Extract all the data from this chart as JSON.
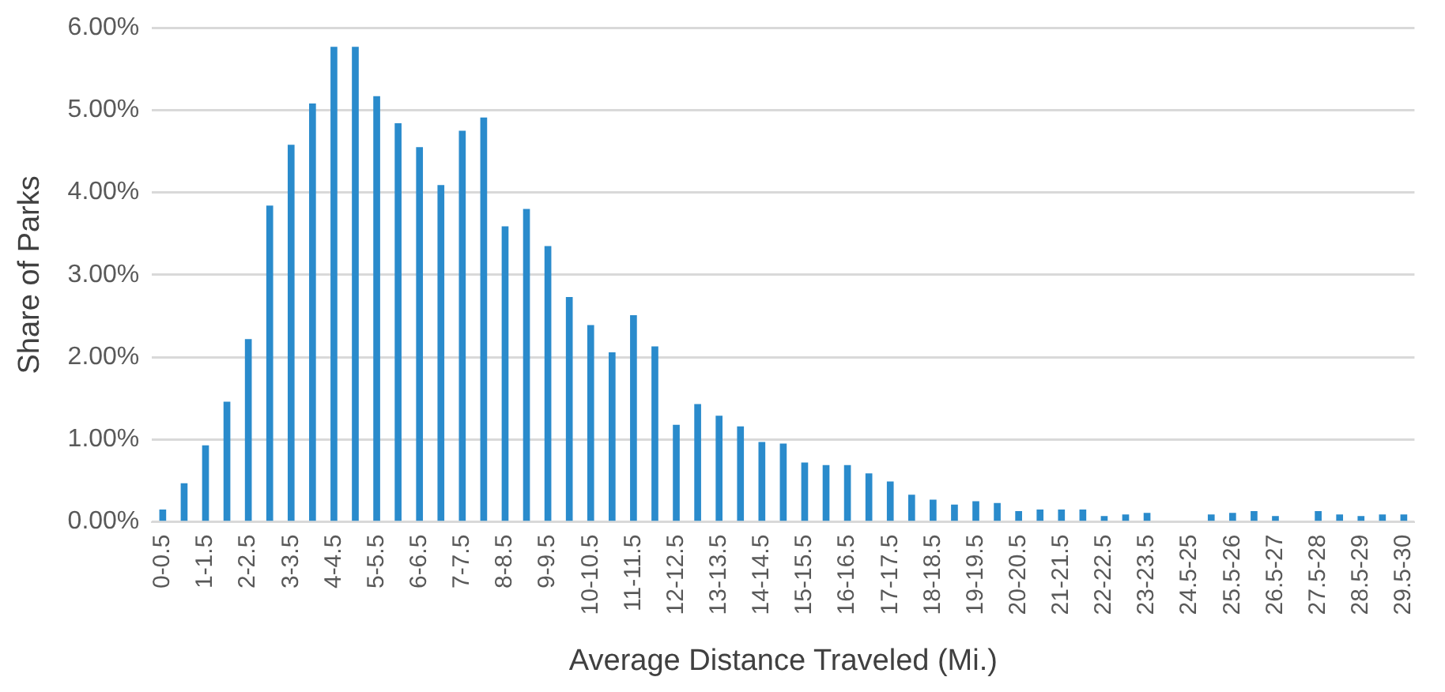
{
  "chart_data": {
    "type": "bar",
    "xlabel": "Average Distance Traveled (Mi.)",
    "ylabel": "Share of Parks",
    "categories": [
      "0-0.5",
      null,
      "1-1.5",
      null,
      "2-2.5",
      null,
      "3-3.5",
      null,
      "4-4.5",
      null,
      "5-5.5",
      null,
      "6-6.5",
      null,
      "7-7.5",
      null,
      "8-8.5",
      null,
      "9-9.5",
      null,
      "10-10.5",
      null,
      "11-11.5",
      null,
      "12-12.5",
      null,
      "13-13.5",
      null,
      "14-14.5",
      null,
      "15-15.5",
      null,
      "16-16.5",
      null,
      "17-17.5",
      null,
      "18-18.5",
      null,
      "19-19.5",
      null,
      "20-20.5",
      null,
      "21-21.5",
      null,
      "22-22.5",
      null,
      "23-23.5",
      null,
      "24.5-25",
      null,
      "25.5-26",
      null,
      "26.5-27",
      null,
      "27.5-28",
      null,
      "28.5-29",
      null,
      "29.5-30"
    ],
    "values": [
      0.15,
      0.47,
      0.93,
      1.46,
      2.22,
      3.84,
      4.58,
      5.08,
      5.77,
      5.77,
      5.17,
      4.84,
      4.55,
      4.09,
      4.75,
      4.91,
      3.59,
      3.8,
      3.35,
      2.73,
      2.39,
      2.06,
      2.51,
      2.13,
      1.18,
      1.43,
      1.29,
      1.16,
      0.97,
      0.95,
      0.72,
      0.69,
      0.69,
      0.59,
      0.49,
      0.33,
      0.27,
      0.21,
      0.25,
      0.23,
      0.13,
      0.15,
      0.15,
      0.15,
      0.07,
      0.09,
      0.11,
      0,
      0,
      0.09,
      0.11,
      0.13,
      0.07,
      0,
      0.13,
      0.09,
      0.07,
      0.09,
      0.09
    ],
    "color": "#2a8bcc",
    "ylim": [
      0,
      6
    ],
    "yticks": [
      {
        "value": 0,
        "label": "0.00%"
      },
      {
        "value": 1,
        "label": "1.00%"
      },
      {
        "value": 2,
        "label": "2.00%"
      },
      {
        "value": 3,
        "label": "3.00%"
      },
      {
        "value": 4,
        "label": "4.00%"
      },
      {
        "value": 5,
        "label": "5.00%"
      },
      {
        "value": 6,
        "label": "6.00%"
      }
    ],
    "grid": "y"
  }
}
